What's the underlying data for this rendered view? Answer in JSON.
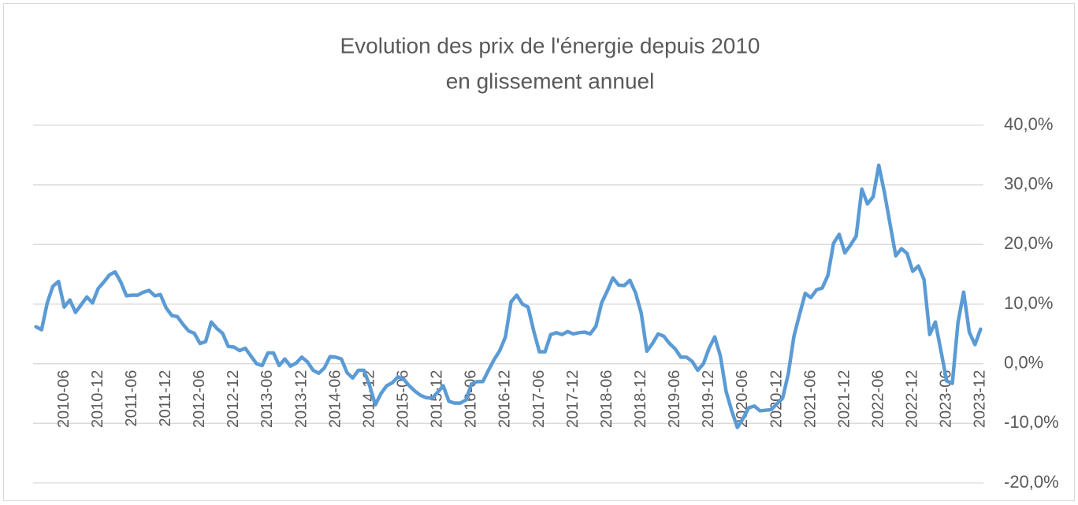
{
  "chart_data": {
    "type": "line",
    "title": [
      "Evolution des prix de l'énergie depuis 2010",
      "en glissement annuel"
    ],
    "categories": [
      null,
      null,
      null,
      null,
      null,
      "2010-06",
      null,
      null,
      null,
      null,
      null,
      "2010-12",
      null,
      null,
      null,
      null,
      null,
      "2011-06",
      null,
      null,
      null,
      null,
      null,
      "2011-12",
      null,
      null,
      null,
      null,
      null,
      "2012-06",
      null,
      null,
      null,
      null,
      null,
      "2012-12",
      null,
      null,
      null,
      null,
      null,
      "2013-06",
      null,
      null,
      null,
      null,
      null,
      "2013-12",
      null,
      null,
      null,
      null,
      null,
      "2014-06",
      null,
      null,
      null,
      null,
      null,
      "2014-12",
      null,
      null,
      null,
      null,
      null,
      "2015-06",
      null,
      null,
      null,
      null,
      null,
      "2015-12",
      null,
      null,
      null,
      null,
      null,
      "2016-06",
      null,
      null,
      null,
      null,
      null,
      "2016-12",
      null,
      null,
      null,
      null,
      null,
      "2017-06",
      null,
      null,
      null,
      null,
      null,
      "2017-12",
      null,
      null,
      null,
      null,
      null,
      "2018-06",
      null,
      null,
      null,
      null,
      null,
      "2018-12",
      null,
      null,
      null,
      null,
      null,
      "2019-06",
      null,
      null,
      null,
      null,
      null,
      "2019-12",
      null,
      null,
      null,
      null,
      null,
      "2020-06",
      null,
      null,
      null,
      null,
      null,
      "2020-12",
      null,
      null,
      null,
      null,
      null,
      "2021-06",
      null,
      null,
      null,
      null,
      null,
      "2021-12",
      null,
      null,
      null,
      null,
      null,
      "2022-06",
      null,
      null,
      null,
      null,
      null,
      "2022-12",
      null,
      null,
      null,
      null,
      null,
      "2023-06",
      null,
      null,
      null,
      null,
      null,
      "2023-12"
    ],
    "series": [
      {
        "color": "#5b9bd5",
        "values": [
          6.2,
          5.7,
          10.2,
          13,
          13.8,
          9.5,
          10.7,
          8.6,
          9.9,
          11.2,
          10.2,
          12.6,
          13.7,
          14.9,
          15.4,
          13.7,
          11.4,
          11.5,
          11.5,
          12,
          12.3,
          11.4,
          11.6,
          9.4,
          8.1,
          7.9,
          6.6,
          5.5,
          5.1,
          3.4,
          3.7,
          7,
          5.9,
          5.1,
          2.9,
          2.8,
          2.2,
          2.6,
          1.3,
          0,
          -0.3,
          1.8,
          1.8,
          -0.3,
          0.8,
          -0.4,
          0.1,
          1.1,
          0.3,
          -1.1,
          -1.6,
          -0.7,
          1.2,
          1.1,
          0.8,
          -1.5,
          -2.4,
          -1.1,
          -1.1,
          -3.7,
          -6.9,
          -5,
          -3.7,
          -3.2,
          -2.2,
          -2.6,
          -3.7,
          -4.6,
          -5.3,
          -5.7,
          -5.8,
          -4.8,
          -3.7,
          -6.3,
          -6.6,
          -6.6,
          -6.1,
          -3.4,
          -3,
          -3,
          -1.1,
          0.7,
          2.2,
          4.5,
          10.4,
          11.5,
          10,
          9.5,
          5.5,
          2,
          2,
          4.9,
          5.2,
          4.9,
          5.4,
          5,
          5.2,
          5.3,
          5,
          6.3,
          10.2,
          12.2,
          14.4,
          13.2,
          13.1,
          14,
          11.9,
          8.5,
          2.1,
          3.4,
          5,
          4.6,
          3.4,
          2.5,
          1.1,
          1.1,
          0.4,
          -1.1,
          0,
          2.6,
          4.5,
          1.3,
          -4.6,
          -7.9,
          -10.7,
          -9.2,
          -7.4,
          -7.1,
          -7.9,
          -7.8,
          -7.7,
          -6.7,
          -5.8,
          -1.7,
          4.6,
          8.3,
          11.8,
          11.1,
          12.4,
          12.7,
          14.8,
          20.2,
          21.7,
          18.6,
          19.9,
          21.4,
          29.3,
          26.8,
          28,
          33.3,
          28.7,
          23.4,
          18.1,
          19.3,
          18.5,
          15.5,
          16.4,
          14.1,
          4.9,
          7,
          2.1,
          -2.9,
          -3.3,
          6.9,
          12,
          5.3,
          3.2,
          5.8
        ]
      }
    ],
    "ylim": [
      -20,
      40
    ],
    "yticks": [
      {
        "value": -20,
        "label": "-20,0%"
      },
      {
        "value": -10,
        "label": "-10,0%"
      },
      {
        "value": 0,
        "label": "0,0%"
      },
      {
        "value": 10,
        "label": "10,0%"
      },
      {
        "value": 20,
        "label": "20,0%"
      },
      {
        "value": 30,
        "label": "30,0%"
      },
      {
        "value": 40,
        "label": "40,0%"
      }
    ],
    "yaxis_side": "right",
    "grid": true
  }
}
